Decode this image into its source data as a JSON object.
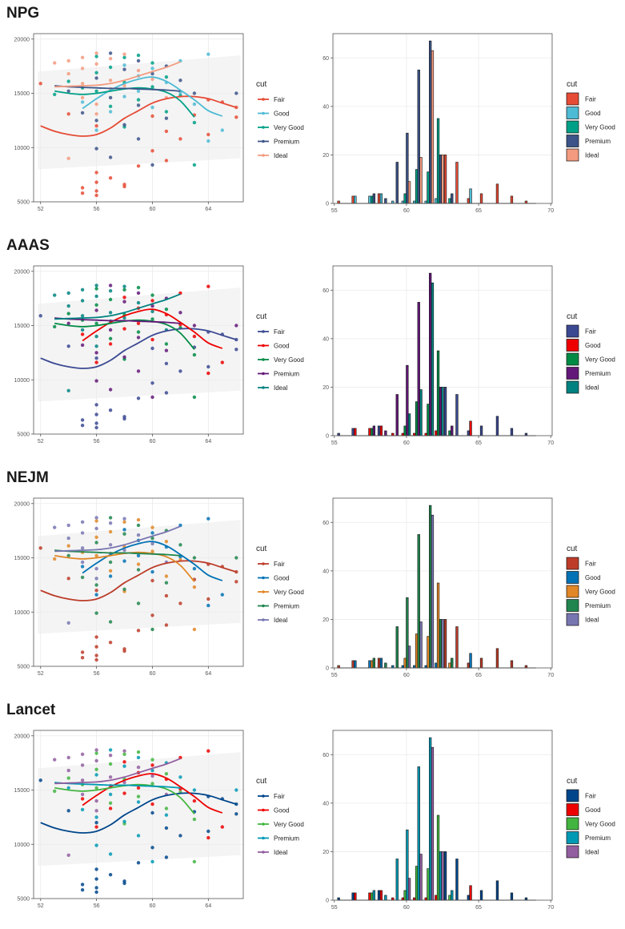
{
  "palettes": [
    {
      "name": "NPG",
      "colors": [
        "#E64B35",
        "#4DBBD5",
        "#00A087",
        "#3C5488",
        "#F39B7F"
      ]
    },
    {
      "name": "AAAS",
      "colors": [
        "#3B4992",
        "#EE0000",
        "#008B45",
        "#631879",
        "#008280"
      ]
    },
    {
      "name": "NEJM",
      "colors": [
        "#BC3C29",
        "#0072B5",
        "#E18727",
        "#20854E",
        "#7876B1"
      ]
    },
    {
      "name": "Lancet",
      "colors": [
        "#00468B",
        "#ED0000",
        "#42B540",
        "#0099B4",
        "#925E9F"
      ]
    }
  ],
  "chart_data": {
    "scatter": {
      "type": "scatter",
      "legend_title": "cut",
      "series_names": [
        "Fair",
        "Good",
        "Very Good",
        "Premium",
        "Ideal"
      ],
      "xlim": [
        51.5,
        66.5
      ],
      "ylim": [
        5000,
        20500
      ],
      "x_ticks": [
        52,
        56,
        60,
        64
      ],
      "y_ticks": [
        5000,
        10000,
        15000,
        20000
      ],
      "points": [
        {
          "x": 52,
          "y": 15900,
          "s": 0
        },
        {
          "x": 54,
          "y": 13100,
          "s": 0
        },
        {
          "x": 55,
          "y": 6300,
          "s": 0
        },
        {
          "x": 55,
          "y": 5800,
          "s": 0
        },
        {
          "x": 56,
          "y": 7700,
          "s": 0
        },
        {
          "x": 56,
          "y": 6800,
          "s": 0
        },
        {
          "x": 56,
          "y": 6000,
          "s": 0
        },
        {
          "x": 56,
          "y": 5600,
          "s": 0
        },
        {
          "x": 56,
          "y": 12000,
          "s": 0
        },
        {
          "x": 57,
          "y": 7200,
          "s": 0
        },
        {
          "x": 58,
          "y": 6600,
          "s": 0
        },
        {
          "x": 58,
          "y": 6400,
          "s": 0
        },
        {
          "x": 59,
          "y": 8300,
          "s": 0
        },
        {
          "x": 60,
          "y": 9700,
          "s": 0
        },
        {
          "x": 60,
          "y": 12900,
          "s": 0
        },
        {
          "x": 61,
          "y": 8800,
          "s": 0
        },
        {
          "x": 62,
          "y": 10800,
          "s": 0
        },
        {
          "x": 63,
          "y": 13000,
          "s": 0
        },
        {
          "x": 64,
          "y": 14400,
          "s": 0
        },
        {
          "x": 64,
          "y": 11200,
          "s": 0
        },
        {
          "x": 65,
          "y": 14200,
          "s": 0
        },
        {
          "x": 66,
          "y": 13700,
          "s": 0
        },
        {
          "x": 66,
          "y": 12800,
          "s": 0
        },
        {
          "x": 61,
          "y": 11500,
          "s": 0
        },
        {
          "x": 55,
          "y": 14200,
          "s": 1
        },
        {
          "x": 56,
          "y": 11600,
          "s": 1
        },
        {
          "x": 57,
          "y": 13300,
          "s": 1
        },
        {
          "x": 58,
          "y": 14700,
          "s": 1
        },
        {
          "x": 58,
          "y": 17600,
          "s": 1
        },
        {
          "x": 59,
          "y": 15200,
          "s": 1
        },
        {
          "x": 59,
          "y": 16600,
          "s": 1
        },
        {
          "x": 60,
          "y": 13700,
          "s": 1
        },
        {
          "x": 60,
          "y": 17300,
          "s": 1
        },
        {
          "x": 61,
          "y": 16000,
          "s": 1
        },
        {
          "x": 62,
          "y": 15100,
          "s": 1
        },
        {
          "x": 62,
          "y": 18000,
          "s": 1
        },
        {
          "x": 63,
          "y": 14000,
          "s": 1
        },
        {
          "x": 64,
          "y": 18600,
          "s": 1
        },
        {
          "x": 64,
          "y": 10600,
          "s": 1
        },
        {
          "x": 65,
          "y": 11600,
          "s": 1
        },
        {
          "x": 53,
          "y": 14900,
          "s": 2
        },
        {
          "x": 54,
          "y": 16100,
          "s": 2
        },
        {
          "x": 55,
          "y": 15500,
          "s": 2
        },
        {
          "x": 56,
          "y": 18400,
          "s": 2
        },
        {
          "x": 56,
          "y": 16900,
          "s": 2
        },
        {
          "x": 56,
          "y": 15200,
          "s": 2
        },
        {
          "x": 57,
          "y": 17400,
          "s": 2
        },
        {
          "x": 57,
          "y": 13800,
          "s": 2
        },
        {
          "x": 58,
          "y": 18300,
          "s": 2
        },
        {
          "x": 58,
          "y": 16000,
          "s": 2
        },
        {
          "x": 59,
          "y": 18500,
          "s": 2
        },
        {
          "x": 59,
          "y": 14400,
          "s": 2
        },
        {
          "x": 60,
          "y": 17800,
          "s": 2
        },
        {
          "x": 60,
          "y": 15600,
          "s": 2
        },
        {
          "x": 61,
          "y": 16500,
          "s": 2
        },
        {
          "x": 61,
          "y": 13300,
          "s": 2
        },
        {
          "x": 62,
          "y": 14800,
          "s": 2
        },
        {
          "x": 63,
          "y": 8400,
          "s": 2
        },
        {
          "x": 63,
          "y": 12300,
          "s": 2
        },
        {
          "x": 58,
          "y": 11900,
          "s": 2
        },
        {
          "x": 54,
          "y": 15200,
          "s": 3
        },
        {
          "x": 55,
          "y": 13200,
          "s": 3
        },
        {
          "x": 56,
          "y": 12500,
          "s": 3
        },
        {
          "x": 56,
          "y": 9900,
          "s": 3
        },
        {
          "x": 56,
          "y": 16400,
          "s": 3
        },
        {
          "x": 57,
          "y": 18700,
          "s": 3
        },
        {
          "x": 57,
          "y": 14600,
          "s": 3
        },
        {
          "x": 58,
          "y": 17200,
          "s": 3
        },
        {
          "x": 58,
          "y": 12100,
          "s": 3
        },
        {
          "x": 59,
          "y": 18000,
          "s": 3
        },
        {
          "x": 59,
          "y": 13900,
          "s": 3
        },
        {
          "x": 59,
          "y": 10800,
          "s": 3
        },
        {
          "x": 60,
          "y": 16800,
          "s": 3
        },
        {
          "x": 60,
          "y": 8400,
          "s": 3
        },
        {
          "x": 61,
          "y": 17500,
          "s": 3
        },
        {
          "x": 61,
          "y": 12700,
          "s": 3
        },
        {
          "x": 62,
          "y": 16200,
          "s": 3
        },
        {
          "x": 63,
          "y": 15000,
          "s": 3
        },
        {
          "x": 66,
          "y": 15000,
          "s": 3
        },
        {
          "x": 57,
          "y": 9100,
          "s": 3
        },
        {
          "x": 53,
          "y": 17800,
          "s": 4
        },
        {
          "x": 54,
          "y": 18000,
          "s": 4
        },
        {
          "x": 54,
          "y": 16800,
          "s": 4
        },
        {
          "x": 54,
          "y": 9000,
          "s": 4
        },
        {
          "x": 55,
          "y": 18300,
          "s": 4
        },
        {
          "x": 55,
          "y": 17300,
          "s": 4
        },
        {
          "x": 55,
          "y": 15900,
          "s": 4
        },
        {
          "x": 55,
          "y": 14600,
          "s": 4
        },
        {
          "x": 56,
          "y": 18700,
          "s": 4
        },
        {
          "x": 56,
          "y": 17700,
          "s": 4
        },
        {
          "x": 56,
          "y": 14000,
          "s": 4
        },
        {
          "x": 56,
          "y": 13100,
          "s": 4
        },
        {
          "x": 57,
          "y": 18200,
          "s": 4
        },
        {
          "x": 57,
          "y": 16200,
          "s": 4
        },
        {
          "x": 57,
          "y": 15400,
          "s": 4
        },
        {
          "x": 58,
          "y": 18600,
          "s": 4
        },
        {
          "x": 58,
          "y": 15700,
          "s": 4
        },
        {
          "x": 59,
          "y": 17100,
          "s": 4
        },
        {
          "x": 60,
          "y": 16300,
          "s": 4
        },
        {
          "x": 61,
          "y": 14600,
          "s": 4
        }
      ],
      "smooth_lines": [
        {
          "name": "Fair",
          "x": [
            52,
            53,
            54,
            55,
            56,
            57,
            58,
            59,
            60,
            61,
            62,
            63,
            64,
            65,
            66
          ],
          "y": [
            12000,
            11500,
            11200,
            11050,
            11200,
            11800,
            12700,
            13400,
            14100,
            14500,
            14700,
            14700,
            14500,
            14100,
            13700
          ]
        },
        {
          "name": "Good",
          "x": [
            55,
            56,
            57,
            58,
            59,
            60,
            61,
            62,
            63,
            64,
            65
          ],
          "y": [
            13600,
            14500,
            15300,
            15900,
            16300,
            16500,
            16100,
            15300,
            14400,
            13400,
            12900
          ]
        },
        {
          "name": "Very Good",
          "x": [
            53,
            54,
            55,
            56,
            57,
            58,
            59,
            60,
            61,
            62,
            63
          ],
          "y": [
            15200,
            15000,
            14900,
            15000,
            15200,
            15400,
            15500,
            15400,
            15100,
            14300,
            12800
          ]
        },
        {
          "name": "Premium",
          "x": [
            53,
            54,
            55,
            56,
            57,
            58,
            59,
            60,
            61,
            62
          ],
          "y": [
            15700,
            15600,
            15550,
            15500,
            15450,
            15450,
            15400,
            15350,
            15300,
            15200
          ]
        },
        {
          "name": "Ideal",
          "x": [
            53,
            54,
            55,
            56,
            57,
            58,
            59,
            60,
            61,
            62
          ],
          "y": [
            15600,
            15650,
            15700,
            15750,
            15900,
            16200,
            16600,
            17000,
            17400,
            17900
          ]
        }
      ]
    },
    "histogram": {
      "type": "bar",
      "legend_title": "cut",
      "series_names": [
        "Fair",
        "Good",
        "Very Good",
        "Premium",
        "Ideal"
      ],
      "xlim": [
        54.9,
        70.1
      ],
      "ylim": [
        0,
        70
      ],
      "x_ticks": [
        55,
        60,
        65,
        70
      ],
      "y_ticks": [
        0,
        20,
        40,
        60
      ],
      "bin_width": 0.76,
      "bins": [
        {
          "x": 55.6,
          "counts": [
            1,
            0,
            0,
            0,
            0
          ]
        },
        {
          "x": 56.6,
          "counts": [
            3,
            3,
            0,
            0,
            0
          ]
        },
        {
          "x": 57.6,
          "counts": [
            0,
            3,
            3,
            4,
            0
          ]
        },
        {
          "x": 58.4,
          "counts": [
            4,
            4,
            0,
            2,
            0
          ]
        },
        {
          "x": 59.2,
          "counts": [
            0,
            1,
            0,
            17,
            0
          ]
        },
        {
          "x": 59.9,
          "counts": [
            0,
            1,
            4,
            29,
            9
          ]
        },
        {
          "x": 60.7,
          "counts": [
            0,
            1,
            14,
            55,
            19
          ]
        },
        {
          "x": 61.5,
          "counts": [
            0,
            1,
            13,
            67,
            63
          ]
        },
        {
          "x": 62.2,
          "counts": [
            0,
            2,
            35,
            20,
            20
          ]
        },
        {
          "x": 63.0,
          "counts": [
            20,
            0,
            2,
            4,
            0
          ]
        },
        {
          "x": 63.8,
          "counts": [
            17,
            0,
            0,
            0,
            0
          ]
        },
        {
          "x": 64.6,
          "counts": [
            2,
            6,
            0,
            0,
            0
          ]
        },
        {
          "x": 65.5,
          "counts": [
            4,
            0,
            0,
            0,
            0
          ]
        },
        {
          "x": 66.6,
          "counts": [
            8,
            0,
            0,
            0,
            0
          ]
        },
        {
          "x": 67.6,
          "counts": [
            3,
            0,
            0,
            0,
            0
          ]
        },
        {
          "x": 68.6,
          "counts": [
            1,
            0,
            0,
            0,
            0
          ]
        }
      ]
    }
  }
}
